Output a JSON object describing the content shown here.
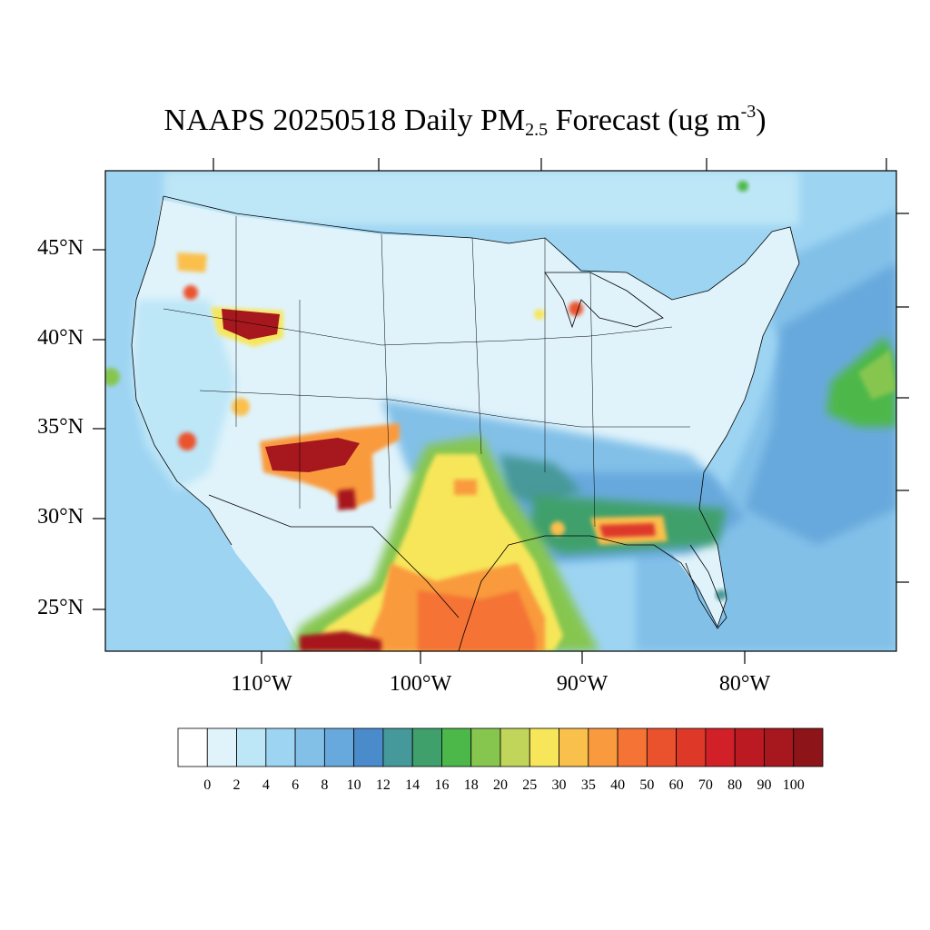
{
  "title": {
    "prefix": "NAAPS 20250518 Daily PM",
    "subscript": "2.5",
    "middle": " Forecast (ug m",
    "superscript": "-3",
    "suffix": ")"
  },
  "map": {
    "type": "filled-contour map",
    "region": "Continental United States",
    "lat_labels": [
      "45°N",
      "40°N",
      "35°N",
      "30°N",
      "25°N"
    ],
    "lat_values": [
      45,
      40,
      35,
      30,
      25
    ],
    "lon_labels": [
      "110°W",
      "100°W",
      "90°W",
      "80°W"
    ],
    "lon_values": [
      -110,
      -100,
      -90,
      -80
    ]
  },
  "colorbar": {
    "labels": [
      "0",
      "2",
      "4",
      "6",
      "8",
      "10",
      "12",
      "14",
      "16",
      "18",
      "20",
      "25",
      "30",
      "35",
      "40",
      "50",
      "60",
      "70",
      "80",
      "90",
      "100"
    ],
    "colors": [
      "#ffffff",
      "#e0f3fb",
      "#bde6f7",
      "#9dd4f2",
      "#82c0e8",
      "#68a9dd",
      "#4a8ccb",
      "#46999a",
      "#3fa06c",
      "#4db84a",
      "#86c64f",
      "#c1d55a",
      "#f7e65a",
      "#fac04c",
      "#f99a3e",
      "#f47335",
      "#ea522d",
      "#de3829",
      "#d22028",
      "#bb1a23",
      "#a6181e",
      "#8d1418"
    ]
  },
  "plumes": [
    {
      "name": "idaho-wyoming-smoke",
      "level": 100
    },
    {
      "name": "arizona-new-mexico-smoke",
      "level": 100
    },
    {
      "name": "texas-mexico-dust",
      "level": 50
    },
    {
      "name": "gulf-coast-smoke",
      "level": 60
    },
    {
      "name": "atlantic-plume",
      "level": 18
    },
    {
      "name": "michigan-smoke",
      "level": 70
    }
  ]
}
